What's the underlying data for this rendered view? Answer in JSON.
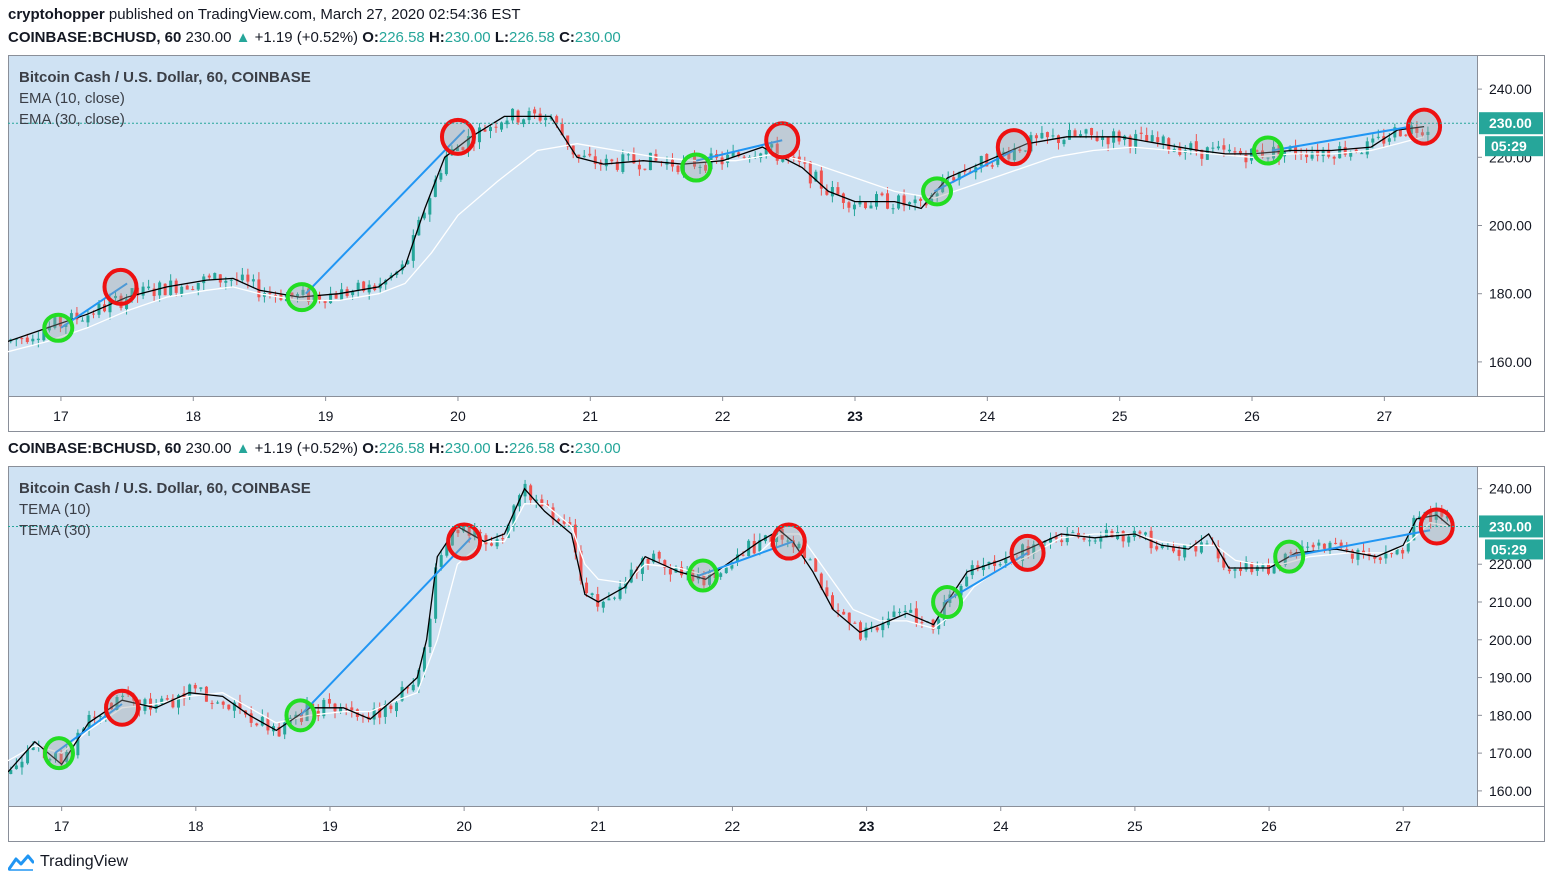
{
  "header": {
    "author": "cryptohopper",
    "published": "published on TradingView.com, March 27, 2020 02:54:36 EST"
  },
  "quote": {
    "symbol": "COINBASE:BCHUSD, 60",
    "last": "230.00",
    "arrow": "▲",
    "change": "+1.19 (+0.52%)",
    "o_label": "O:",
    "o": "226.58",
    "h_label": "H:",
    "h": "230.00",
    "l_label": "L:",
    "l": "226.58",
    "c_label": "C:",
    "c": "230.00"
  },
  "footer": {
    "brand": "TradingView"
  },
  "colors": {
    "plot_bg": "#cfe2f3",
    "up": "#26a69a",
    "down": "#ef5350",
    "fast_line": "#000000",
    "slow_line": "#ffffff",
    "trend_line": "#2196f3",
    "buy_circle": "#22dd22",
    "sell_circle": "#ee1111",
    "price_tag": "#26a69a"
  },
  "chart_data": [
    {
      "type": "candlestick",
      "title": "Bitcoin Cash / U.S. Dollar, 60, COINBASE",
      "indicators": [
        "EMA (10, close)",
        "EMA (30, close)"
      ],
      "x_ticks": [
        "17",
        "18",
        "19",
        "20",
        "21",
        "22",
        "23",
        "24",
        "25",
        "26",
        "27"
      ],
      "x_range": [
        16.6,
        27.7
      ],
      "ylim": [
        150,
        250
      ],
      "y_ticks": [
        160,
        180,
        200,
        220,
        240
      ],
      "y_tick_labels": [
        "160.00",
        "180.00",
        "200.00",
        "220.00",
        "240.00"
      ],
      "last_price": 230,
      "last_price_label": "230.00",
      "countdown": "05:29",
      "grid": false,
      "fast_line": [
        [
          16.6,
          166
        ],
        [
          16.9,
          170
        ],
        [
          17.2,
          174
        ],
        [
          17.5,
          179
        ],
        [
          17.8,
          182
        ],
        [
          18.1,
          184
        ],
        [
          18.3,
          184.5
        ],
        [
          18.5,
          181
        ],
        [
          18.8,
          179
        ],
        [
          19.1,
          180
        ],
        [
          19.4,
          182
        ],
        [
          19.6,
          188
        ],
        [
          19.75,
          205
        ],
        [
          19.9,
          220
        ],
        [
          20.1,
          226
        ],
        [
          20.35,
          232
        ],
        [
          20.7,
          232
        ],
        [
          20.9,
          220
        ],
        [
          21.1,
          218
        ],
        [
          21.4,
          219
        ],
        [
          21.7,
          218
        ],
        [
          22.0,
          219
        ],
        [
          22.3,
          223
        ],
        [
          22.6,
          217
        ],
        [
          22.8,
          210
        ],
        [
          23.0,
          207
        ],
        [
          23.3,
          207
        ],
        [
          23.5,
          205
        ],
        [
          23.7,
          214
        ],
        [
          24.0,
          219
        ],
        [
          24.3,
          224
        ],
        [
          24.6,
          226
        ],
        [
          25.0,
          226
        ],
        [
          25.3,
          224
        ],
        [
          25.6,
          222
        ],
        [
          25.8,
          221
        ],
        [
          26.0,
          221
        ],
        [
          26.3,
          222
        ],
        [
          26.6,
          222
        ],
        [
          26.9,
          223
        ],
        [
          27.1,
          228
        ],
        [
          27.3,
          229
        ]
      ],
      "slow_line": [
        [
          16.6,
          163
        ],
        [
          16.9,
          166
        ],
        [
          17.2,
          170
        ],
        [
          17.5,
          175
        ],
        [
          17.8,
          179
        ],
        [
          18.1,
          181
        ],
        [
          18.3,
          182
        ],
        [
          18.5,
          180
        ],
        [
          18.8,
          178
        ],
        [
          19.1,
          178
        ],
        [
          19.4,
          180
        ],
        [
          19.6,
          183
        ],
        [
          19.8,
          192
        ],
        [
          20.0,
          203
        ],
        [
          20.3,
          213
        ],
        [
          20.6,
          222
        ],
        [
          20.9,
          224
        ],
        [
          21.2,
          222
        ],
        [
          21.5,
          220
        ],
        [
          21.8,
          219
        ],
        [
          22.1,
          219
        ],
        [
          22.4,
          221
        ],
        [
          22.7,
          218
        ],
        [
          23.0,
          214
        ],
        [
          23.3,
          210
        ],
        [
          23.6,
          208
        ],
        [
          23.9,
          212
        ],
        [
          24.2,
          216
        ],
        [
          24.5,
          220
        ],
        [
          24.8,
          222
        ],
        [
          25.1,
          223
        ],
        [
          25.4,
          222
        ],
        [
          25.7,
          221
        ],
        [
          26.0,
          220
        ],
        [
          26.3,
          221
        ],
        [
          26.6,
          221
        ],
        [
          26.9,
          222
        ],
        [
          27.1,
          224
        ],
        [
          27.3,
          226
        ]
      ],
      "trend_lines": [
        [
          [
            17.0,
            170
          ],
          [
            17.5,
            183
          ]
        ],
        [
          [
            18.85,
            180
          ],
          [
            20.05,
            228
          ]
        ],
        [
          [
            21.8,
            219
          ],
          [
            22.45,
            225
          ]
        ],
        [
          [
            23.6,
            210
          ],
          [
            24.2,
            222
          ]
        ],
        [
          [
            26.15,
            222
          ],
          [
            27.2,
            229
          ]
        ]
      ],
      "buy_signals": [
        [
          16.98,
          170
        ],
        [
          18.82,
          179
        ],
        [
          21.8,
          217
        ],
        [
          23.62,
          210
        ],
        [
          26.12,
          222
        ]
      ],
      "sell_signals": [
        [
          17.45,
          182
        ],
        [
          20.0,
          226
        ],
        [
          22.45,
          225
        ],
        [
          24.2,
          223
        ],
        [
          27.3,
          229
        ]
      ]
    },
    {
      "type": "candlestick",
      "title": "Bitcoin Cash / U.S. Dollar, 60, COINBASE",
      "indicators": [
        "TEMA (10)",
        "TEMA (30)"
      ],
      "x_ticks": [
        "17",
        "18",
        "19",
        "20",
        "21",
        "22",
        "23",
        "24",
        "25",
        "26",
        "27"
      ],
      "x_range": [
        16.6,
        27.55
      ],
      "ylim": [
        156,
        246
      ],
      "y_ticks": [
        160,
        170,
        180,
        190,
        200,
        210,
        220,
        230,
        240
      ],
      "y_tick_labels": [
        "160.00",
        "170.00",
        "180.00",
        "190.00",
        "200.00",
        "210.00",
        "220.00",
        "230.00",
        "240.00"
      ],
      "last_price": 230,
      "last_price_label": "230.00",
      "countdown": "05:29",
      "grid": false,
      "fast_line": [
        [
          16.6,
          165
        ],
        [
          16.8,
          173
        ],
        [
          17.0,
          167
        ],
        [
          17.2,
          178
        ],
        [
          17.45,
          184
        ],
        [
          17.7,
          182
        ],
        [
          17.95,
          186
        ],
        [
          18.2,
          185
        ],
        [
          18.4,
          180
        ],
        [
          18.6,
          176
        ],
        [
          18.85,
          182
        ],
        [
          19.1,
          182
        ],
        [
          19.3,
          179
        ],
        [
          19.5,
          185
        ],
        [
          19.65,
          190
        ],
        [
          19.72,
          200
        ],
        [
          19.8,
          222
        ],
        [
          19.95,
          230
        ],
        [
          20.15,
          226
        ],
        [
          20.3,
          228
        ],
        [
          20.45,
          240
        ],
        [
          20.6,
          234
        ],
        [
          20.8,
          228
        ],
        [
          20.9,
          212
        ],
        [
          21.0,
          210
        ],
        [
          21.2,
          214
        ],
        [
          21.35,
          222
        ],
        [
          21.6,
          218
        ],
        [
          21.8,
          216
        ],
        [
          22.0,
          221
        ],
        [
          22.2,
          226
        ],
        [
          22.35,
          229
        ],
        [
          22.45,
          226
        ],
        [
          22.6,
          218
        ],
        [
          22.75,
          208
        ],
        [
          22.95,
          202
        ],
        [
          23.1,
          204
        ],
        [
          23.3,
          207
        ],
        [
          23.5,
          204
        ],
        [
          23.6,
          210
        ],
        [
          23.75,
          218
        ],
        [
          24.0,
          221
        ],
        [
          24.2,
          224
        ],
        [
          24.45,
          228
        ],
        [
          24.7,
          227
        ],
        [
          25.0,
          228
        ],
        [
          25.2,
          225
        ],
        [
          25.4,
          224
        ],
        [
          25.55,
          228
        ],
        [
          25.7,
          219
        ],
        [
          25.9,
          219
        ],
        [
          26.0,
          219
        ],
        [
          26.2,
          223
        ],
        [
          26.5,
          224
        ],
        [
          26.8,
          222
        ],
        [
          27.0,
          225
        ],
        [
          27.1,
          232
        ],
        [
          27.25,
          233
        ],
        [
          27.35,
          230
        ]
      ],
      "slow_line": [
        [
          16.6,
          168
        ],
        [
          16.8,
          172
        ],
        [
          17.0,
          170
        ],
        [
          17.2,
          176
        ],
        [
          17.45,
          182
        ],
        [
          17.7,
          183
        ],
        [
          17.95,
          185
        ],
        [
          18.2,
          186
        ],
        [
          18.4,
          182
        ],
        [
          18.6,
          178
        ],
        [
          18.85,
          180
        ],
        [
          19.1,
          181
        ],
        [
          19.3,
          181
        ],
        [
          19.5,
          184
        ],
        [
          19.65,
          186
        ],
        [
          19.8,
          200
        ],
        [
          19.95,
          220
        ],
        [
          20.15,
          226
        ],
        [
          20.3,
          226
        ],
        [
          20.45,
          236
        ],
        [
          20.6,
          236
        ],
        [
          20.8,
          230
        ],
        [
          20.9,
          220
        ],
        [
          21.0,
          216
        ],
        [
          21.2,
          215
        ],
        [
          21.35,
          220
        ],
        [
          21.6,
          219
        ],
        [
          21.8,
          217
        ],
        [
          22.0,
          220
        ],
        [
          22.2,
          223
        ],
        [
          22.35,
          228
        ],
        [
          22.5,
          228
        ],
        [
          22.7,
          218
        ],
        [
          22.9,
          208
        ],
        [
          23.1,
          205
        ],
        [
          23.3,
          205
        ],
        [
          23.5,
          203
        ],
        [
          23.65,
          207
        ],
        [
          23.8,
          214
        ],
        [
          24.0,
          219
        ],
        [
          24.2,
          222
        ],
        [
          24.45,
          227
        ],
        [
          24.7,
          228
        ],
        [
          25.0,
          228
        ],
        [
          25.2,
          226
        ],
        [
          25.4,
          225
        ],
        [
          25.6,
          225
        ],
        [
          25.75,
          221
        ],
        [
          25.9,
          220
        ],
        [
          26.1,
          220
        ],
        [
          26.3,
          222
        ],
        [
          26.6,
          223
        ],
        [
          26.9,
          223
        ],
        [
          27.05,
          226
        ],
        [
          27.2,
          231
        ],
        [
          27.35,
          230
        ]
      ],
      "trend_lines": [
        [
          [
            16.95,
            170
          ],
          [
            17.45,
            183
          ]
        ],
        [
          [
            18.78,
            180
          ],
          [
            20.05,
            227
          ]
        ],
        [
          [
            21.75,
            217
          ],
          [
            22.45,
            226
          ]
        ],
        [
          [
            23.58,
            210
          ],
          [
            24.2,
            223
          ]
        ],
        [
          [
            26.15,
            222
          ],
          [
            27.2,
            229
          ]
        ]
      ],
      "buy_signals": [
        [
          16.98,
          170
        ],
        [
          18.78,
          180
        ],
        [
          21.78,
          217
        ],
        [
          23.6,
          210
        ],
        [
          26.15,
          222
        ]
      ],
      "sell_signals": [
        [
          17.45,
          182
        ],
        [
          20.0,
          226
        ],
        [
          22.42,
          226
        ],
        [
          24.2,
          223
        ],
        [
          27.25,
          230
        ]
      ]
    }
  ]
}
